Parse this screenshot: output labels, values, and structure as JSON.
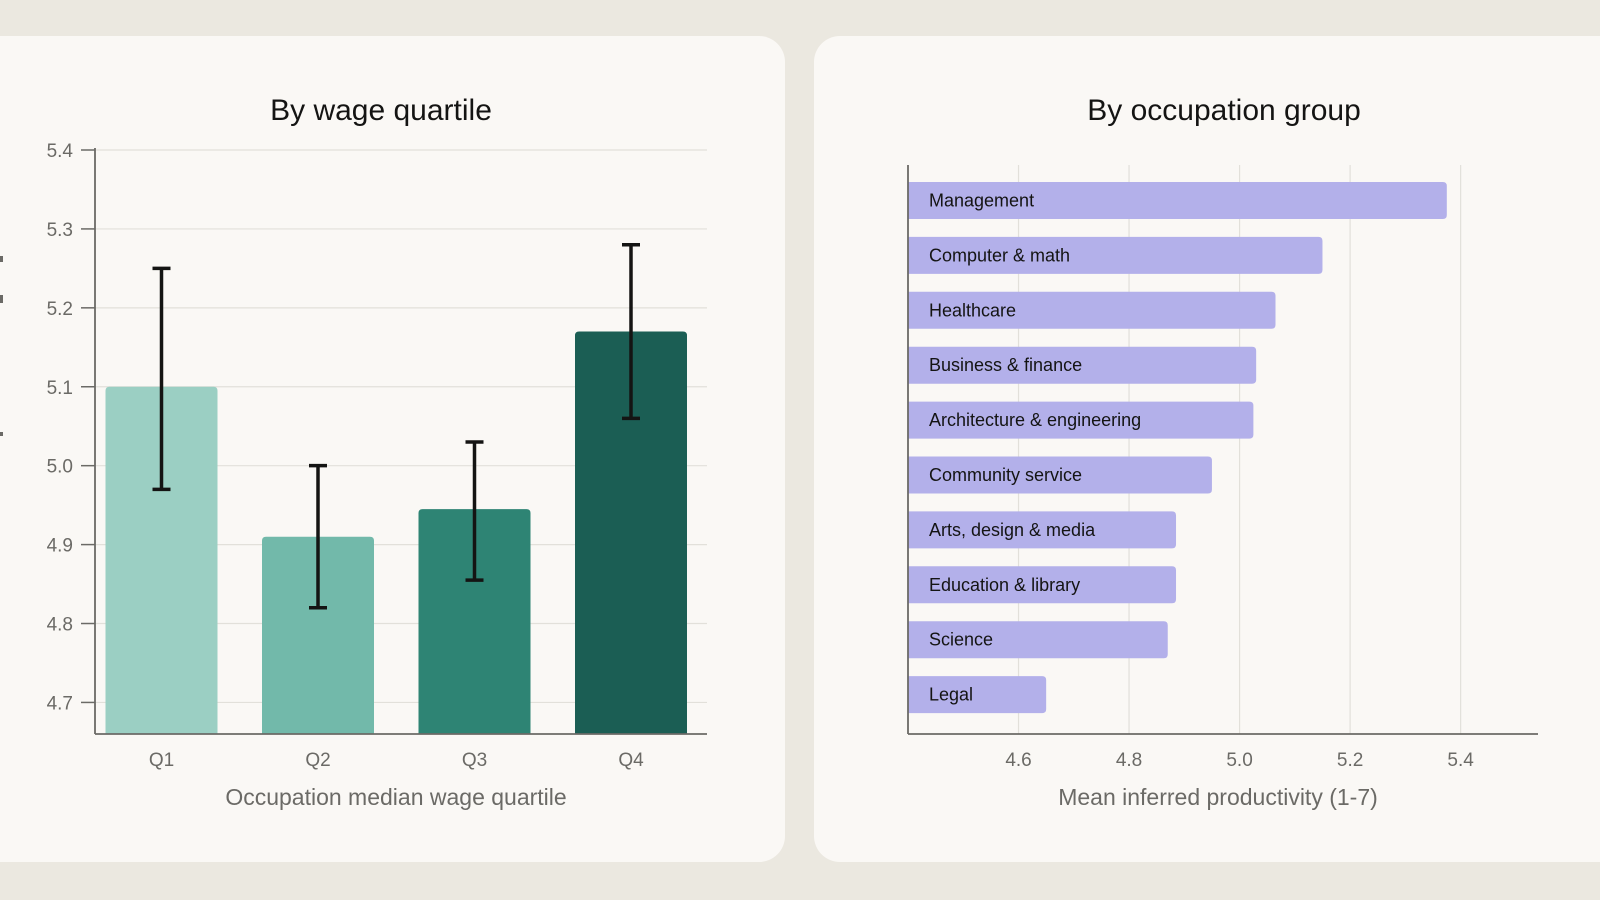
{
  "chart_data": [
    {
      "type": "bar",
      "title": "By wage quartile",
      "xlabel": "Occupation median wage quartile",
      "ylabel": "",
      "categories": [
        "Q1",
        "Q2",
        "Q3",
        "Q4"
      ],
      "values": [
        5.1,
        4.91,
        4.945,
        5.17
      ],
      "error_low": [
        4.97,
        4.82,
        4.855,
        5.06
      ],
      "error_high": [
        5.25,
        5.0,
        5.03,
        5.28
      ],
      "ylim": [
        4.66,
        5.4
      ],
      "yticks": [
        4.7,
        4.8,
        4.9,
        5.0,
        5.1,
        5.2,
        5.3,
        5.4
      ],
      "ytick_labels": [
        "4.7",
        "4.8",
        "4.9",
        "5.0",
        "5.1",
        "5.2",
        "5.3",
        "5.4"
      ],
      "colors": [
        "#9bcfc3",
        "#72b9aa",
        "#2e8474",
        "#1b5e54"
      ],
      "grid": true
    },
    {
      "type": "bar",
      "orientation": "horizontal",
      "title": "By occupation group",
      "xlabel": "Mean inferred productivity (1-7)",
      "categories": [
        "Management",
        "Computer & math",
        "Healthcare",
        "Business & finance",
        "Architecture & engineering",
        "Community service",
        "Arts, design & media",
        "Education & library",
        "Science",
        "Legal"
      ],
      "values": [
        5.375,
        5.15,
        5.065,
        5.03,
        5.025,
        4.95,
        4.885,
        4.885,
        4.87,
        4.65
      ],
      "xlim": [
        4.4,
        5.54
      ],
      "xticks": [
        4.6,
        4.8,
        5.0,
        5.2,
        5.4
      ],
      "xtick_labels": [
        "4.6",
        "4.8",
        "5.0",
        "5.2",
        "5.4"
      ],
      "bar_color": "#b3b0ea",
      "grid": true
    }
  ]
}
